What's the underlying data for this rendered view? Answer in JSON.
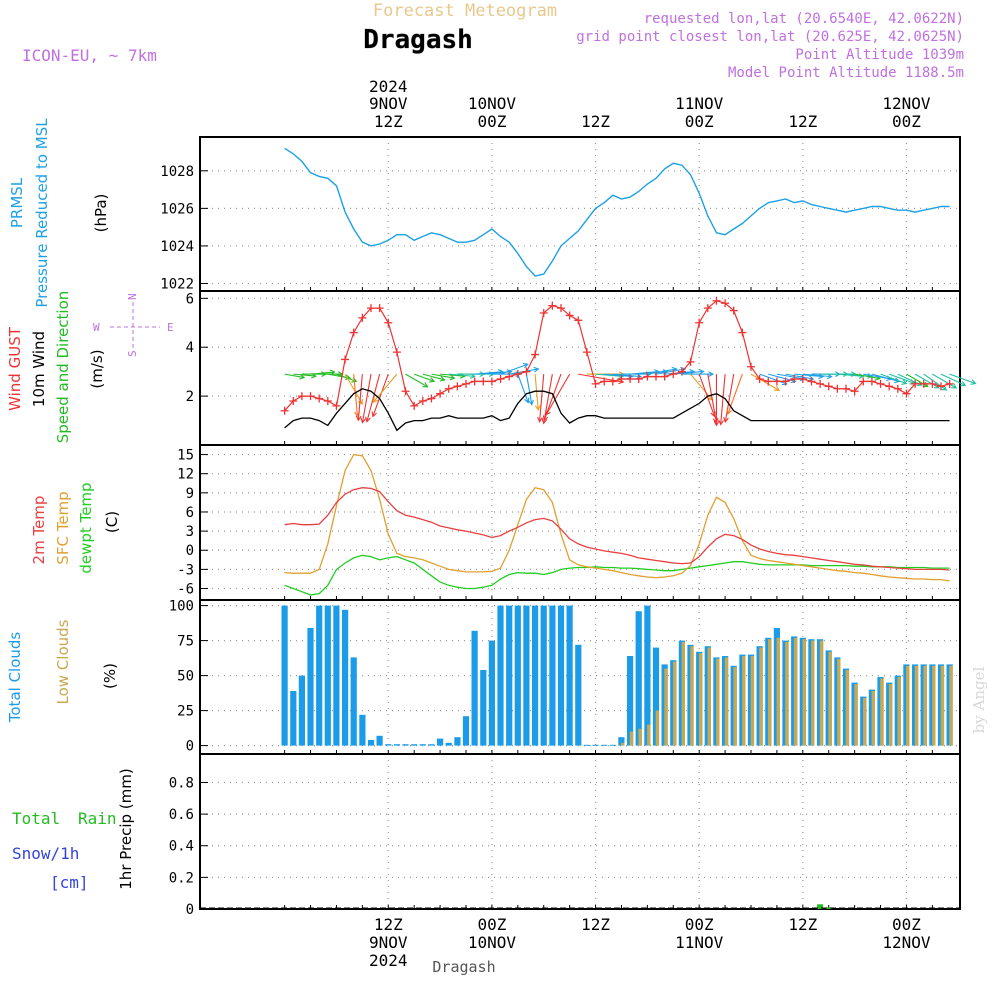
{
  "header": {
    "subtitle": "Forecast Meteogram",
    "title": "Dragash",
    "model": "ICON-EU, ~ 7km",
    "requested": "requested lon,lat (20.6540E, 42.0622N)",
    "grid": "grid point closest lon,lat (20.625E, 42.0625N)",
    "point_alt": "Point Altitude 1039m",
    "model_alt": "Model Point Altitude 1188.5m",
    "credit": "by Angel",
    "footer": "Dragash"
  },
  "colors": {
    "pressure": "#1ca0e6",
    "gust": "#ee3333",
    "wind": "#000000",
    "direction": "#22bb22",
    "temp2m": "#e84040",
    "sfc": "#e0a030",
    "dewpt": "#22cc22",
    "total_clouds": "#1c9ce8",
    "low_clouds": "#c8a850",
    "rain": "#22bb22",
    "snow": "#3344dd",
    "header": "#c070e0",
    "title_sub": "#e8c88c"
  },
  "time_axis": {
    "top_year": "2024",
    "ticks": [
      {
        "h": 12,
        "top": "9NOV",
        "top2": "12Z",
        "bottom": "12Z",
        "bottom2": "9NOV",
        "bottom3": "2024"
      },
      {
        "h": 24,
        "top": "10NOV",
        "top2": "00Z",
        "bottom": "00Z",
        "bottom2": "10NOV",
        "bottom3": ""
      },
      {
        "h": 36,
        "top": "",
        "top2": "12Z",
        "bottom": "12Z",
        "bottom2": "",
        "bottom3": ""
      },
      {
        "h": 48,
        "top": "11NOV",
        "top2": "00Z",
        "bottom": "00Z",
        "bottom2": "11NOV",
        "bottom3": ""
      },
      {
        "h": 60,
        "top": "",
        "top2": "12Z",
        "bottom": "12Z",
        "bottom2": "",
        "bottom3": ""
      },
      {
        "h": 72,
        "top": "12NOV",
        "top2": "00Z",
        "bottom": "00Z",
        "bottom2": "12NOV",
        "bottom3": ""
      }
    ]
  },
  "compass": {
    "west": "W",
    "east": "E",
    "north": "N",
    "south": "S"
  },
  "chart_data": [
    {
      "type": "line",
      "title": "PRMSL Pressure Reduced to MSL",
      "labels": [
        "PRMSL",
        "Pressure Reduced to MSL"
      ],
      "ylabel": "(hPa)",
      "ylim": [
        1021.6,
        1029.8
      ],
      "yticks": [
        1022,
        1024,
        1026,
        1028
      ],
      "x_hours": [
        0,
        1,
        2,
        3,
        4,
        5,
        6,
        7,
        8,
        9,
        10,
        11,
        12,
        13,
        14,
        15,
        16,
        17,
        18,
        19,
        20,
        21,
        22,
        23,
        24,
        25,
        26,
        27,
        28,
        29,
        30,
        31,
        32,
        33,
        34,
        35,
        36,
        37,
        38,
        39,
        40,
        41,
        42,
        43,
        44,
        45,
        46,
        47,
        48,
        49,
        50,
        51,
        52,
        53,
        54,
        55,
        56,
        57,
        58,
        59,
        60,
        61,
        62,
        63,
        64,
        65,
        66,
        67,
        68,
        69,
        70,
        71,
        72,
        73,
        74,
        75,
        76,
        77
      ],
      "pressure": [
        1029.2,
        1028.9,
        1028.5,
        1027.9,
        1027.7,
        1027.6,
        1027.2,
        1025.8,
        1024.9,
        1024.2,
        1024.0,
        1024.1,
        1024.3,
        1024.6,
        1024.6,
        1024.3,
        1024.5,
        1024.7,
        1024.6,
        1024.4,
        1024.2,
        1024.2,
        1024.3,
        1024.6,
        1024.9,
        1024.5,
        1024.2,
        1023.6,
        1022.9,
        1022.4,
        1022.5,
        1023.2,
        1024.0,
        1024.4,
        1024.8,
        1025.4,
        1026.0,
        1026.3,
        1026.7,
        1026.5,
        1026.6,
        1026.9,
        1027.3,
        1027.6,
        1028.1,
        1028.4,
        1028.3,
        1027.8,
        1026.8,
        1025.6,
        1024.7,
        1024.6,
        1024.9,
        1025.2,
        1025.6,
        1026.0,
        1026.3,
        1026.4,
        1026.5,
        1026.3,
        1026.4,
        1026.2,
        1026.1,
        1026.0,
        1025.9,
        1025.8,
        1025.9,
        1026.0,
        1026.1,
        1026.1,
        1026.0,
        1025.9,
        1025.9,
        1025.8,
        1025.9,
        1026.0,
        1026.1,
        1026.1
      ]
    },
    {
      "type": "line",
      "title": "Wind GUST 10m Wind Speed and Direction",
      "labels": [
        "Wind GUST",
        "10m Wind",
        "Speed and Direction"
      ],
      "ylabel": "(m/s)",
      "ylim": [
        0.0,
        6.3
      ],
      "yticks": [
        2,
        4,
        6
      ],
      "x_hours": [
        0,
        1,
        2,
        3,
        4,
        5,
        6,
        7,
        8,
        9,
        10,
        11,
        12,
        13,
        14,
        15,
        16,
        17,
        18,
        19,
        20,
        21,
        22,
        23,
        24,
        25,
        26,
        27,
        28,
        29,
        30,
        31,
        32,
        33,
        34,
        35,
        36,
        37,
        38,
        39,
        40,
        41,
        42,
        43,
        44,
        45,
        46,
        47,
        48,
        49,
        50,
        51,
        52,
        53,
        54,
        55,
        56,
        57,
        58,
        59,
        60,
        61,
        62,
        63,
        64,
        65,
        66,
        67,
        68,
        69,
        70,
        71,
        72,
        73,
        74,
        75,
        76,
        77
      ],
      "gust": [
        1.4,
        1.8,
        2.0,
        2.0,
        1.9,
        1.8,
        1.6,
        3.5,
        4.6,
        5.2,
        5.6,
        5.6,
        5.0,
        3.8,
        2.2,
        1.6,
        1.8,
        1.9,
        2.1,
        2.3,
        2.4,
        2.5,
        2.6,
        2.6,
        2.6,
        2.7,
        2.8,
        2.9,
        3.0,
        3.7,
        5.4,
        5.7,
        5.6,
        5.3,
        5.1,
        3.8,
        2.5,
        2.6,
        2.6,
        2.7,
        2.7,
        2.7,
        2.8,
        2.8,
        2.8,
        2.9,
        3.0,
        3.4,
        5.0,
        5.6,
        5.9,
        5.8,
        5.5,
        4.6,
        3.2,
        2.7,
        2.6,
        2.6,
        2.6,
        2.7,
        2.7,
        2.6,
        2.5,
        2.4,
        2.3,
        2.3,
        2.2,
        2.6,
        2.6,
        2.5,
        2.4,
        2.3,
        2.1,
        2.5,
        2.5,
        2.5,
        2.4,
        2.5
      ],
      "wind": [
        0.7,
        1.0,
        1.1,
        1.1,
        1.0,
        0.8,
        1.3,
        1.7,
        2.1,
        2.3,
        2.2,
        1.9,
        1.3,
        0.6,
        0.9,
        1.0,
        1.0,
        1.1,
        1.1,
        1.2,
        1.1,
        1.1,
        1.1,
        1.1,
        1.2,
        1.0,
        1.1,
        1.7,
        2.1,
        2.2,
        2.2,
        2.1,
        1.3,
        0.9,
        1.1,
        1.2,
        1.2,
        1.1,
        1.1,
        1.1,
        1.1,
        1.1,
        1.1,
        1.1,
        1.1,
        1.1,
        1.3,
        1.5,
        1.7,
        2.0,
        2.1,
        1.9,
        1.4,
        1.2,
        1.0,
        1.0,
        1.0,
        1.0,
        1.0,
        1.0,
        1.0,
        1.0,
        1.0,
        1.0,
        1.0,
        1.0,
        1.0,
        1.0,
        1.0,
        1.0,
        1.0,
        1.0,
        1.0,
        1.0,
        1.0,
        1.0,
        1.0,
        1.0
      ],
      "direction_deg": [
        280,
        275,
        270,
        265,
        270,
        280,
        290,
        330,
        355,
        5,
        10,
        15,
        20,
        40,
        300,
        290,
        285,
        280,
        275,
        275,
        270,
        270,
        265,
        265,
        270,
        250,
        260,
        340,
        350,
        355,
        5,
        10,
        20,
        30,
        280,
        270,
        275,
        275,
        275,
        270,
        265,
        265,
        260,
        260,
        265,
        265,
        270,
        320,
        340,
        350,
        0,
        5,
        10,
        20,
        300,
        290,
        285,
        280,
        280,
        275,
        275,
        270,
        270,
        270,
        275,
        275,
        280,
        280,
        285,
        290,
        290,
        295,
        300,
        300,
        305,
        300,
        295,
        290
      ]
    },
    {
      "type": "line",
      "title": "2m Temp SFC Temp dewpt Temp",
      "labels": [
        "2m Temp",
        "SFC Temp",
        "dewpt Temp"
      ],
      "ylabel": "(C)",
      "ylim": [
        -7.8,
        16.5
      ],
      "yticks": [
        -6,
        -3,
        0,
        3,
        6,
        9,
        12,
        15
      ],
      "x_hours": [
        0,
        1,
        2,
        3,
        4,
        5,
        6,
        7,
        8,
        9,
        10,
        11,
        12,
        13,
        14,
        15,
        16,
        17,
        18,
        19,
        20,
        21,
        22,
        23,
        24,
        25,
        26,
        27,
        28,
        29,
        30,
        31,
        32,
        33,
        34,
        35,
        36,
        37,
        38,
        39,
        40,
        41,
        42,
        43,
        44,
        45,
        46,
        47,
        48,
        49,
        50,
        51,
        52,
        53,
        54,
        55,
        56,
        57,
        58,
        59,
        60,
        61,
        62,
        63,
        64,
        65,
        66,
        67,
        68,
        69,
        70,
        71,
        72,
        73,
        74,
        75,
        76,
        77
      ],
      "temp2m": [
        4.0,
        4.2,
        4.0,
        4.0,
        4.1,
        5.5,
        7.5,
        8.8,
        9.5,
        9.8,
        9.7,
        9.2,
        7.6,
        6.2,
        5.5,
        5.2,
        4.8,
        4.4,
        3.8,
        3.5,
        3.2,
        3.0,
        2.7,
        2.4,
        2.0,
        2.3,
        3.0,
        3.6,
        4.3,
        4.8,
        5.0,
        4.6,
        3.3,
        1.8,
        1.0,
        0.5,
        0.2,
        -0.1,
        -0.3,
        -0.5,
        -0.8,
        -1.2,
        -1.4,
        -1.6,
        -1.8,
        -2.0,
        -2.1,
        -2.0,
        -1.0,
        0.5,
        1.8,
        2.5,
        2.3,
        1.7,
        0.8,
        0.2,
        -0.2,
        -0.5,
        -0.7,
        -0.8,
        -1.0,
        -1.2,
        -1.4,
        -1.6,
        -1.8,
        -2.0,
        -2.2,
        -2.3,
        -2.5,
        -2.6,
        -2.7,
        -2.8,
        -2.9,
        -3.0,
        -3.0,
        -3.0,
        -3.0,
        -3.1
      ],
      "sfc": [
        -3.5,
        -3.6,
        -3.6,
        -3.6,
        -3.0,
        1.0,
        7.0,
        12.5,
        15.0,
        14.8,
        12.5,
        8.0,
        2.5,
        -0.5,
        -1.0,
        -1.2,
        -1.5,
        -2.0,
        -2.5,
        -3.0,
        -3.2,
        -3.4,
        -3.4,
        -3.4,
        -3.3,
        -2.8,
        0.0,
        4.0,
        8.0,
        9.8,
        9.5,
        7.5,
        2.5,
        -1.5,
        -2.3,
        -2.6,
        -2.8,
        -3.0,
        -3.2,
        -3.5,
        -3.8,
        -4.0,
        -4.2,
        -4.3,
        -4.2,
        -4.0,
        -3.6,
        -2.4,
        1.0,
        5.5,
        8.3,
        7.5,
        5.0,
        1.5,
        -0.8,
        -1.3,
        -1.6,
        -1.8,
        -2.0,
        -2.2,
        -2.4,
        -2.6,
        -2.8,
        -3.0,
        -3.2,
        -3.3,
        -3.5,
        -3.6,
        -3.8,
        -4.0,
        -4.2,
        -4.3,
        -4.4,
        -4.5,
        -4.5,
        -4.6,
        -4.6,
        -4.8
      ],
      "dewpt": [
        -5.5,
        -6.0,
        -6.5,
        -7.0,
        -6.8,
        -5.5,
        -3.0,
        -2.0,
        -1.2,
        -0.8,
        -1.0,
        -1.5,
        -1.2,
        -1.0,
        -1.5,
        -2.0,
        -3.0,
        -4.0,
        -5.0,
        -5.5,
        -5.8,
        -6.0,
        -6.0,
        -5.8,
        -5.5,
        -4.5,
        -3.8,
        -3.5,
        -3.6,
        -3.6,
        -3.8,
        -3.5,
        -3.0,
        -2.8,
        -2.7,
        -2.7,
        -2.6,
        -2.7,
        -2.7,
        -2.8,
        -2.8,
        -2.9,
        -3.0,
        -3.1,
        -3.2,
        -3.2,
        -3.0,
        -2.8,
        -2.6,
        -2.4,
        -2.2,
        -2.0,
        -1.8,
        -1.8,
        -2.0,
        -2.2,
        -2.3,
        -2.3,
        -2.3,
        -2.3,
        -2.3,
        -2.4,
        -2.4,
        -2.4,
        -2.4,
        -2.4,
        -2.5,
        -2.5,
        -2.6,
        -2.6,
        -2.6,
        -2.7,
        -2.7,
        -2.7,
        -2.7,
        -2.8,
        -2.8,
        -2.8
      ]
    },
    {
      "type": "bar",
      "title": "Total Clouds Low Clouds",
      "labels": [
        "Total Clouds",
        "Low Clouds"
      ],
      "ylabel": "(%)",
      "ylim": [
        -6,
        104
      ],
      "yticks": [
        0,
        25,
        50,
        75,
        100
      ],
      "x_hours": [
        0,
        1,
        2,
        3,
        4,
        5,
        6,
        7,
        8,
        9,
        10,
        11,
        12,
        13,
        14,
        15,
        16,
        17,
        18,
        19,
        20,
        21,
        22,
        23,
        24,
        25,
        26,
        27,
        28,
        29,
        30,
        31,
        32,
        33,
        34,
        35,
        36,
        37,
        38,
        39,
        40,
        41,
        42,
        43,
        44,
        45,
        46,
        47,
        48,
        49,
        50,
        51,
        52,
        53,
        54,
        55,
        56,
        57,
        58,
        59,
        60,
        61,
        62,
        63,
        64,
        65,
        66,
        67,
        68,
        69,
        70,
        71,
        72,
        73,
        74,
        75,
        76,
        77
      ],
      "total": [
        100,
        39,
        50,
        84,
        100,
        100,
        100,
        97,
        63,
        22,
        4,
        7,
        1,
        1,
        1,
        1,
        1,
        1,
        5,
        2,
        6,
        21,
        82,
        54,
        75,
        100,
        100,
        100,
        100,
        100,
        100,
        100,
        100,
        100,
        72,
        0,
        0,
        0,
        0,
        6,
        64,
        96,
        100,
        70,
        58,
        61,
        75,
        72,
        67,
        71,
        63,
        64,
        57,
        65,
        65,
        71,
        77,
        84,
        75,
        78,
        77,
        76,
        76,
        68,
        63,
        55,
        45,
        35,
        40,
        49,
        45,
        50,
        58,
        58,
        58,
        58,
        58,
        58
      ],
      "low": [
        0,
        0,
        0,
        0,
        0,
        0,
        0,
        0,
        0,
        0,
        0,
        0,
        0,
        0,
        0,
        0,
        0,
        0,
        0,
        0,
        0,
        0,
        0,
        0,
        0,
        0,
        0,
        0,
        0,
        0,
        0,
        0,
        0,
        0,
        0,
        0,
        0,
        0,
        0,
        2,
        10,
        12,
        15,
        25,
        55,
        60,
        74,
        71,
        66,
        70,
        62,
        63,
        56,
        64,
        64,
        70,
        76,
        77,
        74,
        77,
        76,
        75,
        75,
        67,
        62,
        54,
        44,
        34,
        39,
        48,
        44,
        49,
        57,
        57,
        57,
        57,
        57,
        57
      ]
    },
    {
      "type": "bar",
      "title": "Total Rain Snow/1h [cm] 1hr Precip (mm)",
      "labels": [
        "Total",
        "Rain",
        "Snow/1h",
        "[cm]"
      ],
      "ylabel": "1hr Precip (mm)",
      "ylim": [
        0,
        0.98
      ],
      "yticks": [
        0,
        0.2,
        0.4,
        0.6,
        0.8
      ],
      "ytick_labels": [
        "0",
        "0.2",
        "0.4",
        "0.6",
        "0.8"
      ],
      "x_hours": [
        62,
        63
      ],
      "rain": [
        0.03,
        0.01
      ],
      "snow": [
        0,
        0
      ]
    }
  ]
}
